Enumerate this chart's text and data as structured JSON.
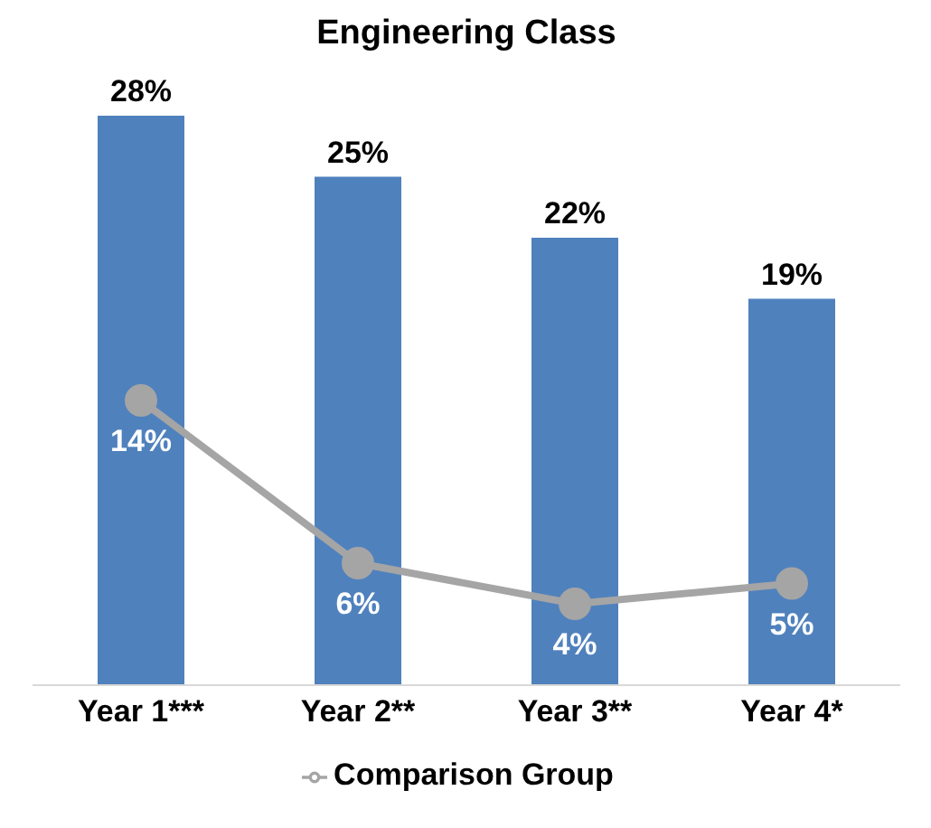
{
  "chart_data": {
    "type": "bar",
    "title": "Engineering Class",
    "categories": [
      "Year 1***",
      "Year 2**",
      "Year 3**",
      "Year 4*"
    ],
    "series": [
      {
        "color": "#4f81bd",
        "values": [
          28,
          25,
          22,
          19
        ],
        "value_labels": [
          "28%",
          "25%",
          "22%",
          "19%"
        ]
      },
      {
        "type": "line",
        "name": "Comparison Group",
        "color": "#a5a5a5",
        "values": [
          14,
          6,
          4,
          5
        ],
        "value_labels": [
          "14%",
          "6%",
          "4%",
          "5%"
        ],
        "marker": "circle"
      }
    ],
    "legend": "bottom",
    "grid": false
  }
}
